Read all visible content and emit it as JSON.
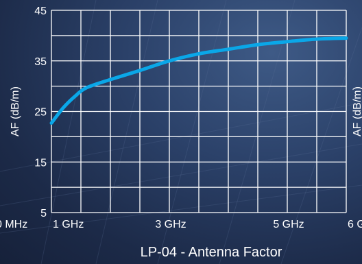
{
  "caption": "LP-04 - Antenna Factor",
  "chart_data": {
    "type": "line",
    "title": "LP-04 - Antenna Factor",
    "xlabel": "",
    "ylabel": "AF (dB/m)",
    "right_ylabel": "AF (dB/m)",
    "x_unit": "GHz",
    "xlim": [
      1,
      6
    ],
    "ylim": [
      5,
      45
    ],
    "y_ticks": [
      5,
      15,
      25,
      35,
      45
    ],
    "x_ticks": [
      {
        "value": 1,
        "label": "1 GHz"
      },
      {
        "value": 3,
        "label": "3 GHz"
      },
      {
        "value": 5,
        "label": "5 GHz"
      },
      {
        "value": 6,
        "label": "6 GHz"
      }
    ],
    "left_cut_label": "0 MHz",
    "grid": true,
    "line_color": "#0aa7e8",
    "series": [
      {
        "name": "",
        "x": [
          1.0,
          1.2,
          1.4,
          1.6,
          2.0,
          2.5,
          3.0,
          3.5,
          4.0,
          4.5,
          5.0,
          5.5,
          6.0
        ],
        "y": [
          22.7,
          25.7,
          28.0,
          29.7,
          31.3,
          33.1,
          35.0,
          36.4,
          37.3,
          38.2,
          38.8,
          39.3,
          39.5
        ]
      }
    ]
  }
}
